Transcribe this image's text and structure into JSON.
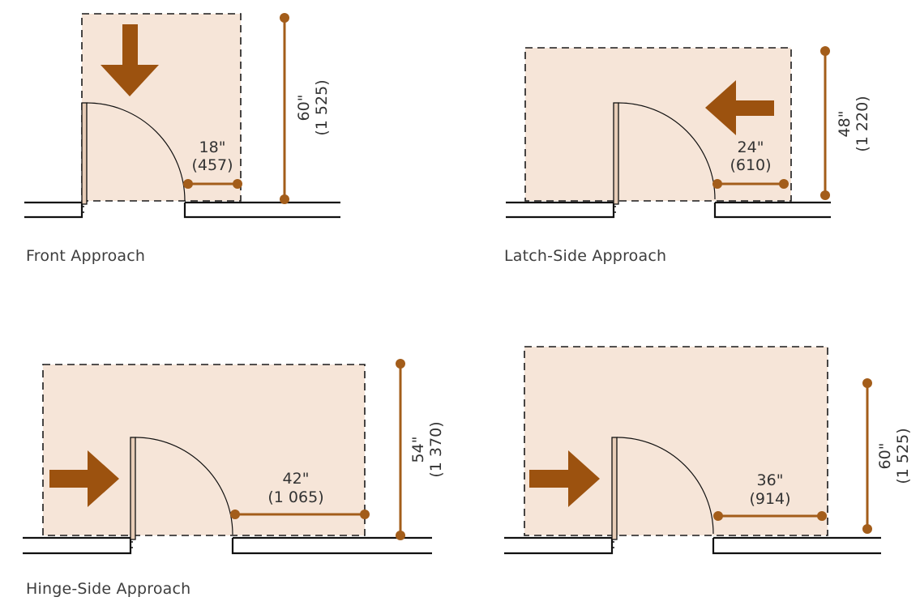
{
  "diagrams": [
    {
      "caption": "Front Approach",
      "dimensions": [
        {
          "line1": "18\"",
          "line2": "(457)"
        },
        {
          "line1": "60\"",
          "line2": "(1 525)"
        }
      ]
    },
    {
      "caption": "Latch-Side Approach",
      "dimensions": [
        {
          "line1": "24\"",
          "line2": "(610)"
        },
        {
          "line1": "48\"",
          "line2": "(1 220)"
        }
      ]
    },
    {
      "caption": "Hinge-Side Approach",
      "dimensions": [
        {
          "line1": "42\"",
          "line2": "(1 065)"
        },
        {
          "line1": "54\"",
          "line2": "(1 370)"
        }
      ]
    },
    {
      "caption": "",
      "dimensions": [
        {
          "line1": "36\"",
          "line2": "(914)"
        },
        {
          "line1": "60\"",
          "line2": "(1 525)"
        }
      ]
    }
  ],
  "colors": {
    "clearance_fill": "#f6e5d8",
    "dimension": "#a35d1a",
    "arrow": "#9c520f",
    "door": "#e8cdb7"
  },
  "icons": [
    "approach-arrow-icon"
  ]
}
